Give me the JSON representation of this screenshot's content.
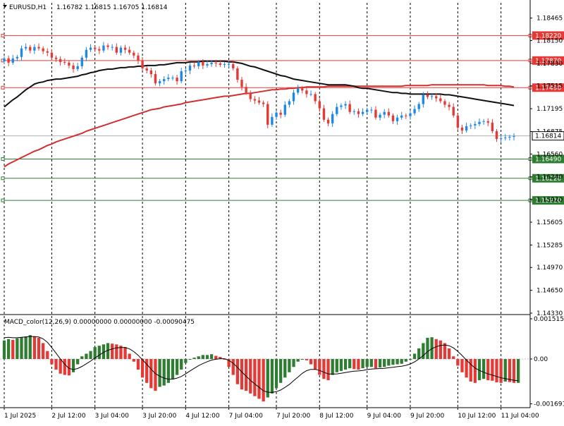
{
  "header": {
    "symbol_label": "EURUSD,H1",
    "ohlc_text": "1.16782 1.16815 1.16705 1.16814"
  },
  "macd": {
    "label": "MACD_color(12,26,9) 0.00000000 0.00000000 -0.00090475",
    "ticks": [
      {
        "value": 0.0015155,
        "label": "0.0015155"
      },
      {
        "value": 0.0,
        "label": "0.00"
      },
      {
        "value": -0.001691,
        "label": "-0.001691"
      }
    ]
  },
  "colors": {
    "bull": "#1e88e5",
    "bear": "#e53935",
    "ma_fast": "#111111",
    "ma_slow": "#d32f2f",
    "resistance": "#e53935",
    "support": "#2e7d32",
    "hist_pos": "#2e7d32",
    "hist_neg": "#e53935"
  },
  "chart_data": {
    "type": "candlestick",
    "x_range": [
      0,
      118
    ],
    "y_range": [
      1.1433,
      1.1856
    ],
    "time_labels": [
      {
        "i": 0,
        "label": "1 Jul 2025"
      },
      {
        "i": 11,
        "label": "2 Jul 12:00"
      },
      {
        "i": 21,
        "label": "3 Jul 04:00"
      },
      {
        "i": 32,
        "label": "3 Jul 20:00"
      },
      {
        "i": 42,
        "label": "4 Jul 12:00"
      },
      {
        "i": 52,
        "label": "7 Jul 04:00"
      },
      {
        "i": 63,
        "label": "7 Jul 20:00"
      },
      {
        "i": 73,
        "label": "8 Jul 12:00"
      },
      {
        "i": 84,
        "label": "9 Jul 04:00"
      },
      {
        "i": 94,
        "label": "9 Jul 20:00"
      },
      {
        "i": 105,
        "label": "10 Jul 12:00"
      },
      {
        "i": 115,
        "label": "11 Jul 04:00"
      }
    ],
    "price_ticks": [
      {
        "value": 1.18465,
        "label": "1.18465"
      },
      {
        "value": 1.1815,
        "label": "1.18150"
      },
      {
        "value": 1.1783,
        "label": "1.17830"
      },
      {
        "value": 1.17515,
        "label": "1.17515"
      },
      {
        "value": 1.17195,
        "label": "1.17195"
      },
      {
        "value": 1.16875,
        "label": "1.16875"
      },
      {
        "value": 1.1656,
        "label": "1.16560"
      },
      {
        "value": 1.1624,
        "label": "1.16240"
      },
      {
        "value": 1.1592,
        "label": "1.15920"
      },
      {
        "value": 1.15605,
        "label": "1.15605"
      },
      {
        "value": 1.15285,
        "label": "1.15285"
      },
      {
        "value": 1.1497,
        "label": "1.14970"
      },
      {
        "value": 1.1465,
        "label": "1.14650"
      },
      {
        "value": 1.1433,
        "label": "1.14330"
      }
    ],
    "current_price": {
      "value": 1.16814,
      "label": "1.16814"
    },
    "resistance_levels": [
      {
        "value": 1.1822,
        "label": "1.18220"
      },
      {
        "value": 1.1787,
        "label": "1.17870"
      },
      {
        "value": 1.1749,
        "label": "1.17490"
      }
    ],
    "support_levels": [
      {
        "value": 1.1649,
        "label": "1.16490"
      },
      {
        "value": 1.1622,
        "label": "1.16220"
      },
      {
        "value": 1.1591,
        "label": "1.15910"
      }
    ],
    "closes": [
      1.179,
      1.1784,
      1.179,
      1.1792,
      1.1804,
      1.1806,
      1.1801,
      1.1806,
      1.1804,
      1.18,
      1.1798,
      1.1791,
      1.1789,
      1.1785,
      1.1784,
      1.178,
      1.1775,
      1.1779,
      1.1791,
      1.1802,
      1.1805,
      1.1803,
      1.1801,
      1.1808,
      1.1806,
      1.1806,
      1.1798,
      1.1805,
      1.1802,
      1.1798,
      1.1794,
      1.1787,
      1.1776,
      1.1773,
      1.1768,
      1.1755,
      1.1758,
      1.1761,
      1.1763,
      1.1763,
      1.1758,
      1.1772,
      1.1773,
      1.178,
      1.1779,
      1.1785,
      1.178,
      1.1782,
      1.1784,
      1.1783,
      1.1781,
      1.1782,
      1.1782,
      1.1776,
      1.176,
      1.175,
      1.1742,
      1.1733,
      1.1731,
      1.1728,
      1.1726,
      1.1697,
      1.1708,
      1.1714,
      1.1711,
      1.1725,
      1.173,
      1.1742,
      1.1748,
      1.1745,
      1.174,
      1.174,
      1.173,
      1.172,
      1.1704,
      1.1699,
      1.1712,
      1.1722,
      1.1724,
      1.1726,
      1.1715,
      1.1716,
      1.1712,
      1.1715,
      1.1718,
      1.1718,
      1.1707,
      1.1711,
      1.1715,
      1.171,
      1.1702,
      1.1707,
      1.171,
      1.1709,
      1.1713,
      1.1719,
      1.1726,
      1.1739,
      1.1736,
      1.1737,
      1.1734,
      1.173,
      1.1725,
      1.1722,
      1.171,
      1.1693,
      1.1689,
      1.1695,
      1.1696,
      1.1698,
      1.1701,
      1.1702,
      1.17,
      1.1688,
      1.1677,
      1.1678,
      1.1679,
      1.168,
      1.1681
    ],
    "ma_fast": [
      1.1722,
      1.1727,
      1.1732,
      1.1736,
      1.1741,
      1.1746,
      1.175,
      1.1754,
      1.1756,
      1.1757,
      1.1759,
      1.176,
      1.1761,
      1.1761,
      1.1762,
      1.1763,
      1.1764,
      1.1765,
      1.1767,
      1.1768,
      1.177,
      1.1771,
      1.1773,
      1.1774,
      1.1775,
      1.1775,
      1.1776,
      1.1777,
      1.1777,
      1.1778,
      1.1778,
      1.1779,
      1.1779,
      1.178,
      1.178,
      1.178,
      1.1781,
      1.1781,
      1.1782,
      1.1783,
      1.1784,
      1.1784,
      1.1784,
      1.1785,
      1.1785,
      1.1785,
      1.1786,
      1.1786,
      1.1786,
      1.1786,
      1.1786,
      1.1786,
      1.1785,
      1.1785,
      1.1784,
      1.1783,
      1.1781,
      1.1779,
      1.1778,
      1.1776,
      1.1774,
      1.1772,
      1.177,
      1.1768,
      1.1766,
      1.1765,
      1.1763,
      1.1761,
      1.176,
      1.1759,
      1.1758,
      1.1757,
      1.1756,
      1.1755,
      1.1754,
      1.1753,
      1.1753,
      1.1753,
      1.1753,
      1.1753,
      1.1752,
      1.1751,
      1.1749,
      1.1748,
      1.1748,
      1.1747,
      1.1746,
      1.1745,
      1.1744,
      1.1743,
      1.1742,
      1.1742,
      1.1741,
      1.1741,
      1.174,
      1.174,
      1.174,
      1.174,
      1.174,
      1.174,
      1.174,
      1.174,
      1.1739,
      1.1739,
      1.1738,
      1.1737,
      1.1736,
      1.1735,
      1.1734,
      1.1733,
      1.1732,
      1.1731,
      1.173,
      1.1729,
      1.1728,
      1.1727,
      1.1726,
      1.1725,
      1.1724
    ],
    "ma_slow": [
      1.1638,
      1.1642,
      1.1645,
      1.1648,
      1.1651,
      1.1654,
      1.1657,
      1.166,
      1.1662,
      1.1665,
      1.1668,
      1.167,
      1.1673,
      1.1675,
      1.1677,
      1.1679,
      1.1681,
      1.1683,
      1.1685,
      1.1688,
      1.169,
      1.1692,
      1.1694,
      1.1696,
      1.1698,
      1.17,
      1.1702,
      1.1704,
      1.1706,
      1.1708,
      1.171,
      1.1712,
      1.1714,
      1.1716,
      1.1718,
      1.1719,
      1.172,
      1.1722,
      1.1723,
      1.1724,
      1.1725,
      1.1726,
      1.1728,
      1.1729,
      1.173,
      1.1731,
      1.1732,
      1.1733,
      1.1734,
      1.1735,
      1.1736,
      1.1737,
      1.1737,
      1.1738,
      1.1739,
      1.174,
      1.1741,
      1.1741,
      1.1742,
      1.1743,
      1.1744,
      1.1745,
      1.1746,
      1.1746,
      1.1747,
      1.1747,
      1.1748,
      1.1748,
      1.1749,
      1.1749,
      1.175,
      1.175,
      1.175,
      1.175,
      1.175,
      1.1751,
      1.1751,
      1.1751,
      1.1751,
      1.1751,
      1.1751,
      1.1751,
      1.1751,
      1.1751,
      1.1751,
      1.1751,
      1.1751,
      1.1751,
      1.1751,
      1.1751,
      1.1751,
      1.1751,
      1.1751,
      1.1752,
      1.1752,
      1.1752,
      1.1752,
      1.1752,
      1.1752,
      1.1753,
      1.1753,
      1.1753,
      1.1753,
      1.1753,
      1.1753,
      1.1753,
      1.1753,
      1.1753,
      1.1753,
      1.1753,
      1.1753,
      1.1753,
      1.1752,
      1.1752,
      1.1752,
      1.1752,
      1.1751,
      1.1751,
      1.175
    ],
    "macd_hist": [
      0.0007,
      0.00075,
      0.00072,
      0.00078,
      0.00082,
      0.00085,
      0.0009,
      0.00086,
      0.0008,
      0.0006,
      0.0003,
      -0.0002,
      -0.0004,
      -0.00055,
      -0.0006,
      -0.00062,
      -0.0005,
      -0.0002,
      0.0001,
      0.0002,
      0.0003,
      0.00045,
      0.0005,
      0.00055,
      0.0006,
      0.00058,
      0.00055,
      0.0005,
      0.00045,
      0.0002,
      -0.0001,
      -0.0004,
      -0.0007,
      -0.0009,
      -0.0011,
      -0.0012,
      -0.00105,
      -0.001,
      -0.0009,
      -0.00075,
      -0.0006,
      -0.0004,
      -0.00015,
      0.0,
      5e-05,
      0.0001,
      0.00015,
      0.00015,
      0.00018,
      0.00012,
      8e-05,
      0.0,
      -0.0003,
      -0.0006,
      -0.00095,
      -0.00115,
      -0.0012,
      -0.0013,
      -0.0014,
      -0.0015,
      -0.0016,
      -0.00145,
      -0.0013,
      -0.0011,
      -0.0009,
      -0.0007,
      -0.0005,
      -0.0003,
      -0.0001,
      0.0,
      -5e-05,
      -0.0002,
      -0.0004,
      -0.0006,
      -0.00075,
      -0.0008,
      -0.0006,
      -0.0005,
      -0.00045,
      -0.0004,
      -0.00035,
      -0.00038,
      -0.0004,
      -0.00035,
      -0.0003,
      -0.0003,
      -0.00035,
      -0.00032,
      -0.0003,
      -0.00025,
      -0.00022,
      -0.0002,
      -0.00018,
      -0.0001,
      0.0,
      0.0002,
      0.0004,
      0.0006,
      0.0008,
      0.00082,
      0.00075,
      0.0007,
      0.0006,
      0.0004,
      0.0001,
      -0.00025,
      -0.0005,
      -0.0007,
      -0.00085,
      -0.0009,
      -0.0008,
      -0.00075,
      -0.0008,
      -0.00082,
      -0.00088,
      -0.0009,
      -0.00085,
      -0.00087,
      -0.0009,
      -0.0009
    ],
    "macd_signal": [
      0.0008,
      0.00082,
      0.0008,
      0.0008,
      0.00082,
      0.00083,
      0.00085,
      0.00084,
      0.00083,
      0.00076,
      0.00063,
      0.00043,
      0.00022,
      0.0,
      -0.0002,
      -0.00035,
      -0.0004,
      -0.00036,
      -0.00028,
      -0.00018,
      -8e-05,
      4e-05,
      0.00015,
      0.00025,
      0.00033,
      0.00038,
      0.00042,
      0.00043,
      0.00043,
      0.00038,
      0.00028,
      0.00014,
      -3e-05,
      -0.0002,
      -0.00038,
      -0.00055,
      -0.00065,
      -0.00072,
      -0.00076,
      -0.00076,
      -0.00072,
      -0.00066,
      -0.00056,
      -0.00045,
      -0.00035,
      -0.00025,
      -0.00017,
      -0.0001,
      -4e-05,
      -1e-05,
      1e-05,
      1e-05,
      -5e-05,
      -0.00016,
      -0.00032,
      -0.00049,
      -0.00065,
      -0.0008,
      -0.00094,
      -0.00107,
      -0.0012,
      -0.00125,
      -0.00126,
      -0.00123,
      -0.00117,
      -0.00107,
      -0.00096,
      -0.00082,
      -0.00068,
      -0.00054,
      -0.00044,
      -0.00039,
      -0.00039,
      -0.00043,
      -0.0005,
      -0.00056,
      -0.00057,
      -0.00056,
      -0.00054,
      -0.00051,
      -0.00048,
      -0.00046,
      -0.00045,
      -0.00043,
      -0.0004,
      -0.00038,
      -0.00037,
      -0.00036,
      -0.00035,
      -0.00033,
      -0.00031,
      -0.00029,
      -0.00027,
      -0.00024,
      -0.00019,
      -0.00011,
      0.0,
      0.00013,
      0.00028,
      0.00039,
      0.00046,
      0.00051,
      0.00053,
      0.0005,
      0.00042,
      0.00029,
      0.00013,
      -4e-05,
      -0.0002,
      -0.00034,
      -0.00043,
      -0.0005,
      -0.00056,
      -0.00061,
      -0.00066,
      -0.00071,
      -0.00074,
      -0.00077,
      -0.0008,
      -0.00082
    ]
  }
}
